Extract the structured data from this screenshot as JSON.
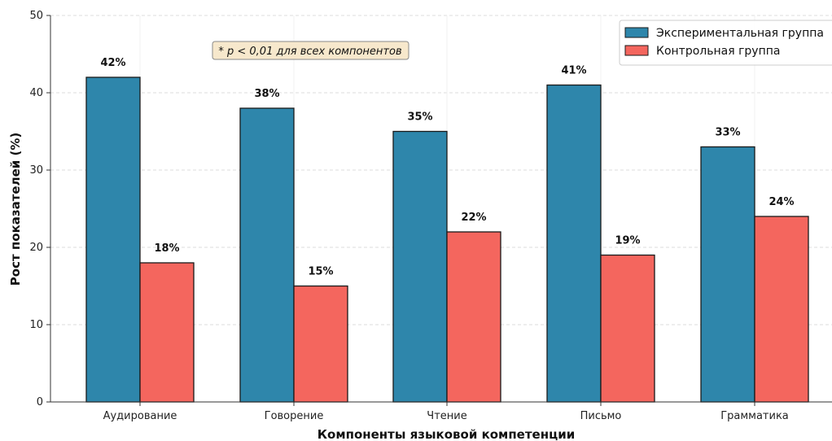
{
  "chart_data": {
    "type": "bar",
    "title": "",
    "xlabel": "Компоненты языковой компетенции",
    "ylabel": "Рост показателей (%)",
    "ylim": [
      0,
      50
    ],
    "yticks": [
      0,
      10,
      20,
      30,
      40,
      50
    ],
    "grid": true,
    "legend_position": "top-right",
    "categories": [
      "Аудирование",
      "Говорение",
      "Чтение",
      "Письмо",
      "Грамматика"
    ],
    "series": [
      {
        "name": "Экспериментальная группа",
        "color": "#2e86ab",
        "values": [
          42,
          38,
          35,
          41,
          33
        ],
        "labels": [
          "42%",
          "38%",
          "35%",
          "41%",
          "33%"
        ]
      },
      {
        "name": "Контрольная группа",
        "color": "#f4665e",
        "values": [
          18,
          15,
          22,
          19,
          24
        ],
        "labels": [
          "18%",
          "15%",
          "22%",
          "19%",
          "24%"
        ]
      }
    ],
    "annotation": "* p < 0,01 для всех компонентов"
  }
}
